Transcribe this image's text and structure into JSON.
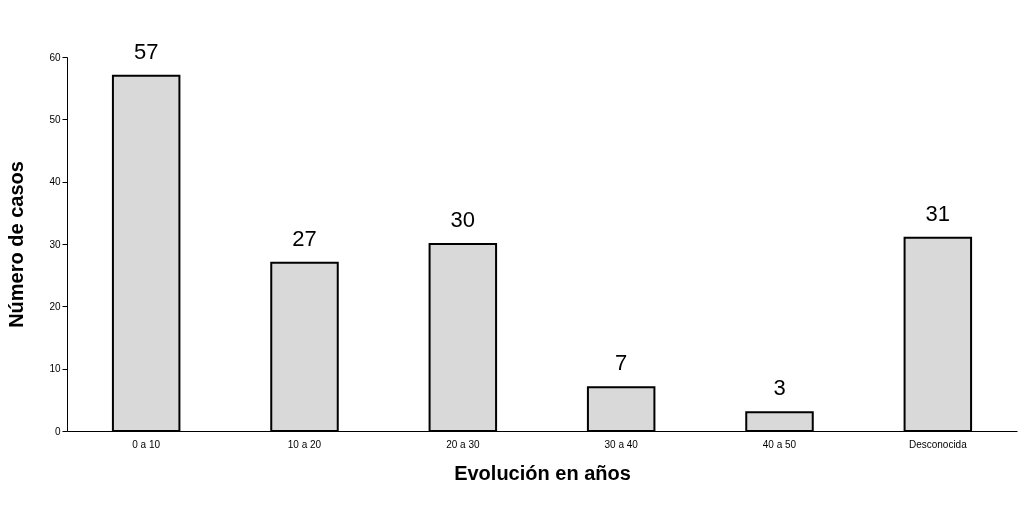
{
  "chart_data": {
    "type": "bar",
    "xlabel": "Evolución en años",
    "ylabel": "Número de casos",
    "categories": [
      "0 a 10",
      "10 a 20",
      "20 a 30",
      "30 a 40",
      "40 a 50",
      "Desconocida"
    ],
    "values": [
      57,
      27,
      30,
      7,
      3,
      31
    ],
    "color": "#d9d9d9",
    "ylim": [
      0,
      60
    ],
    "yticks": [
      0,
      10,
      20,
      30,
      40,
      50,
      60
    ],
    "data_labels": true,
    "grid": false
  }
}
